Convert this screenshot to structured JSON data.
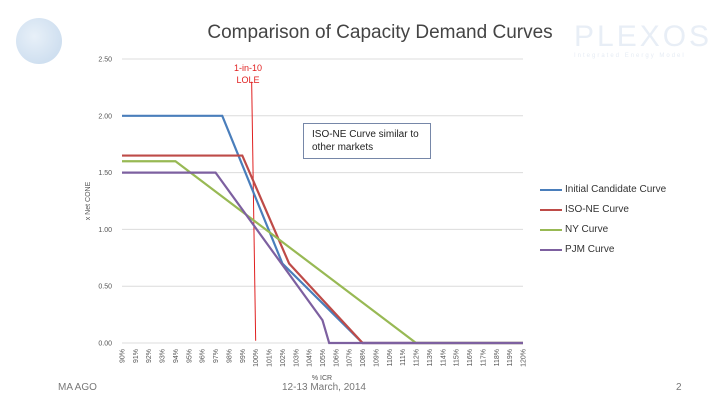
{
  "slide": {
    "title": "Comparison of Capacity Demand Curves",
    "logo_text": "PLEXOS",
    "logo_sub": "Integrated Energy Model",
    "footer_left": "MA AGO",
    "footer_center": "12-13 March, 2014",
    "page": "2"
  },
  "chart_data": {
    "type": "line",
    "title": "",
    "xlabel": "% ICR",
    "ylabel": "x Net CONE",
    "xlim": [
      90,
      120
    ],
    "ylim": [
      0,
      2.5
    ],
    "xticks": [
      "90%",
      "91%",
      "92%",
      "93%",
      "94%",
      "95%",
      "96%",
      "97%",
      "98%",
      "99%",
      "100%",
      "101%",
      "102%",
      "103%",
      "104%",
      "105%",
      "106%",
      "107%",
      "108%",
      "109%",
      "110%",
      "111%",
      "112%",
      "113%",
      "114%",
      "115%",
      "116%",
      "117%",
      "118%",
      "119%",
      "120%"
    ],
    "yticks": [
      "0.00",
      "0.50",
      "1.00",
      "1.50",
      "2.00",
      "2.50"
    ],
    "grid": true,
    "legend_position": "right",
    "series": [
      {
        "name": "Initial Candidate Curve",
        "color": "#4a7ebb",
        "points": [
          [
            90,
            2.0
          ],
          [
            97.5,
            2.0
          ],
          [
            102,
            0.7
          ],
          [
            108,
            0
          ]
        ],
        "extend_to": 120
      },
      {
        "name": "ISO-NE Curve",
        "color": "#be4b48",
        "points": [
          [
            90,
            1.65
          ],
          [
            99,
            1.65
          ],
          [
            102.5,
            0.7
          ],
          [
            108,
            0
          ]
        ],
        "extend_to": 120
      },
      {
        "name": "NY Curve",
        "color": "#98b954",
        "points": [
          [
            90,
            1.6
          ],
          [
            94,
            1.6
          ],
          [
            112,
            0
          ]
        ],
        "extend_to": 120
      },
      {
        "name": "PJM Curve",
        "color": "#7d60a0",
        "points": [
          [
            90,
            1.5
          ],
          [
            97,
            1.5
          ],
          [
            105,
            0.2
          ],
          [
            105.5,
            0
          ]
        ],
        "extend_to": 120
      }
    ],
    "annotations": [
      {
        "text_lines": [
          "1-in-10",
          "LOLE"
        ],
        "color": "#e02020",
        "line": [
          [
            99.7,
            2.3
          ],
          [
            100,
            0.02
          ]
        ]
      },
      {
        "text": "ISO-NE Curve similar to other markets"
      }
    ]
  }
}
